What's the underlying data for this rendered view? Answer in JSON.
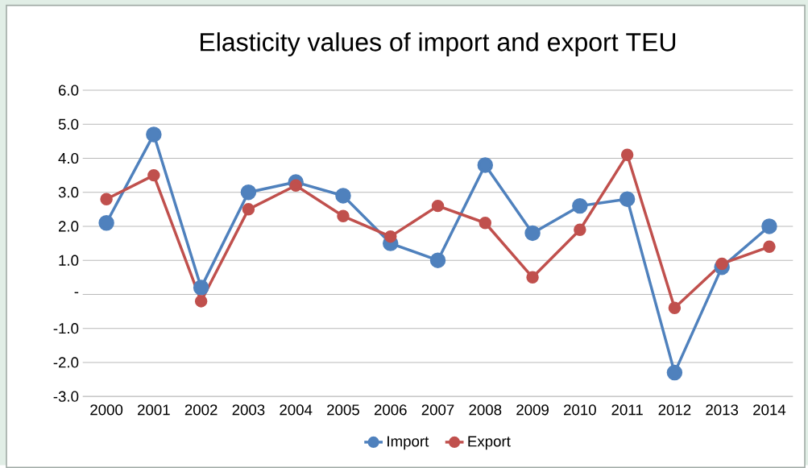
{
  "chart_data": {
    "type": "line",
    "title": "Elasticity values of import and export TEU",
    "categories": [
      "2000",
      "2001",
      "2002",
      "2003",
      "2004",
      "2005",
      "2006",
      "2007",
      "2008",
      "2009",
      "2010",
      "2011",
      "2012",
      "2013",
      "2014"
    ],
    "series": [
      {
        "name": "Import",
        "color": "#4f81bd",
        "values": [
          2.1,
          4.7,
          0.2,
          3.0,
          3.3,
          2.9,
          1.5,
          1.0,
          3.8,
          1.8,
          2.6,
          2.8,
          -2.3,
          0.8,
          2.0
        ]
      },
      {
        "name": "Export",
        "color": "#c0504d",
        "values": [
          2.8,
          3.5,
          -0.2,
          2.5,
          3.2,
          2.3,
          1.7,
          2.6,
          2.1,
          0.5,
          1.9,
          4.1,
          -0.4,
          0.9,
          1.4
        ]
      }
    ],
    "ylim": [
      -3,
      6
    ],
    "yticks": [
      {
        "value": -3,
        "label": "-3.0"
      },
      {
        "value": -2,
        "label": "-2.0"
      },
      {
        "value": -1,
        "label": "-1.0"
      },
      {
        "value": 0,
        "label": "-"
      },
      {
        "value": 1,
        "label": "1.0"
      },
      {
        "value": 2,
        "label": "2.0"
      },
      {
        "value": 3,
        "label": "3.0"
      },
      {
        "value": 4,
        "label": "4.0"
      },
      {
        "value": 5,
        "label": "5.0"
      },
      {
        "value": 6,
        "label": "6.0"
      }
    ],
    "grid": "y",
    "legend": "bottom",
    "marker": "circle",
    "line_style": "solid"
  }
}
